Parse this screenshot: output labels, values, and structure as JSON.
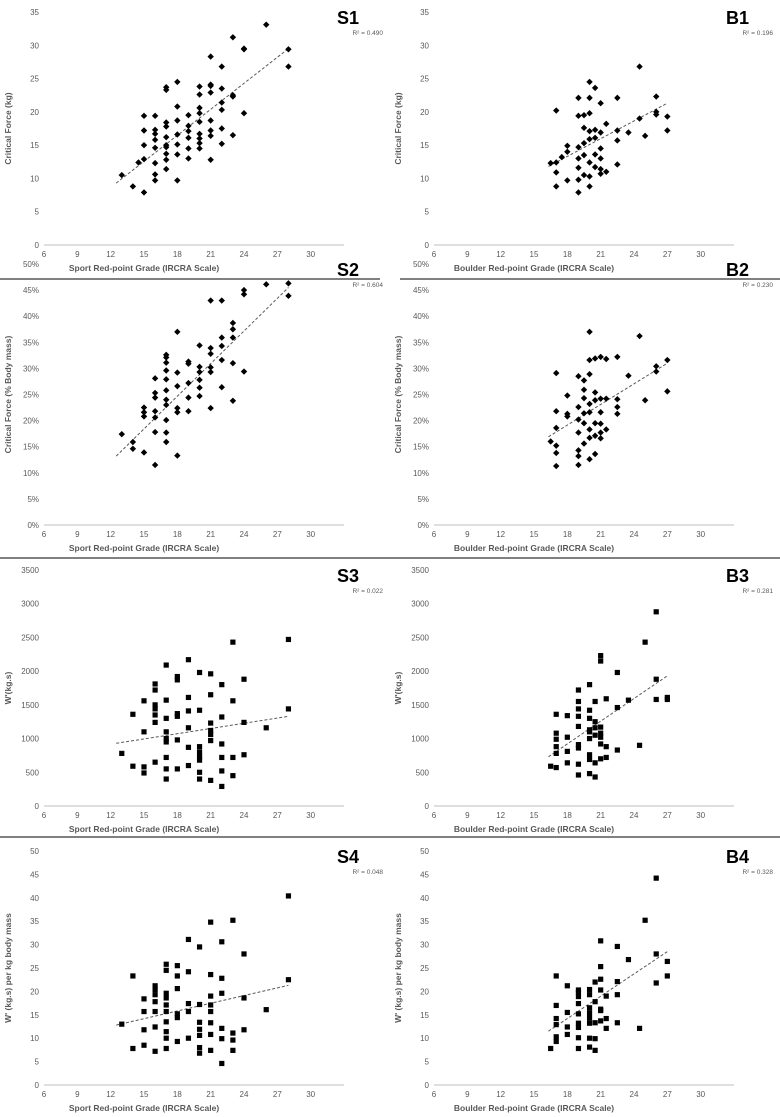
{
  "chart_data": [
    {
      "id": "S1",
      "type": "scatter",
      "panel_label": "S1",
      "r2_label": "R² = 0.490",
      "xlabel": "Sport Red-point Grade (IRCRA Scale)",
      "ylabel": "Critical Force (kg)",
      "xlim": [
        6,
        33
      ],
      "ylim": [
        0,
        35
      ],
      "xticks": [
        "6",
        "9",
        "12",
        "15",
        "18",
        "21",
        "24",
        "27",
        "30"
      ],
      "yticks": [
        "0",
        "5",
        "10",
        "15",
        "20",
        "25",
        "30",
        "35"
      ],
      "marker": "diamond",
      "trendline": {
        "x": [
          12.5,
          28
        ],
        "y": [
          9.3,
          29.5
        ]
      },
      "x": [
        13,
        14,
        14.5,
        15,
        15,
        15,
        15,
        15,
        16,
        16,
        16,
        16,
        16,
        16,
        16,
        16,
        17,
        17,
        17,
        17,
        17,
        17,
        17,
        17,
        17,
        17,
        18,
        18,
        18,
        18,
        18,
        18,
        18,
        19,
        19,
        19,
        19,
        19,
        19,
        20,
        20,
        20,
        20,
        20,
        20,
        20,
        20,
        20,
        21,
        21,
        21,
        21,
        21,
        21,
        21,
        21,
        22,
        22,
        22,
        22,
        22,
        22,
        23,
        23,
        23,
        23,
        24,
        24,
        24,
        26,
        28,
        28
      ],
      "y": [
        10.5,
        8.8,
        12.4,
        7.9,
        12.9,
        15,
        17.2,
        19.4,
        9.7,
        10.6,
        12.3,
        14.6,
        15.8,
        16.7,
        17.3,
        19.4,
        11.4,
        12.8,
        13.7,
        14.7,
        15,
        16.2,
        17.8,
        18.4,
        23.3,
        23.7,
        9.7,
        13.6,
        15.1,
        16.6,
        18.7,
        20.8,
        24.5,
        13,
        14.5,
        16.1,
        17.1,
        17.9,
        19.5,
        14.5,
        15.3,
        16,
        16.7,
        18.5,
        19.8,
        20.6,
        22.6,
        23.8,
        12.8,
        16.4,
        17.2,
        18.7,
        22.9,
        23.9,
        24.1,
        28.3,
        15.2,
        17.5,
        20.3,
        21.4,
        23.5,
        26.8,
        16.5,
        22.3,
        22.5,
        31.2,
        19.8,
        29.4,
        29.5,
        33.1,
        26.8,
        29.4
      ]
    },
    {
      "id": "B1",
      "type": "scatter",
      "panel_label": "B1",
      "r2_label": "R² = 0.196",
      "xlabel": "Boulder Red-point Grade (IRCRA Scale)",
      "ylabel": "Critical Force (kg)",
      "xlim": [
        6,
        33
      ],
      "ylim": [
        0,
        35
      ],
      "xticks": [
        "6",
        "9",
        "12",
        "15",
        "18",
        "21",
        "24",
        "27",
        "30"
      ],
      "yticks": [
        "0",
        "5",
        "10",
        "15",
        "20",
        "25",
        "30",
        "35"
      ],
      "marker": "diamond",
      "trendline": {
        "x": [
          16.3,
          27
        ],
        "y": [
          11.8,
          21.3
        ]
      },
      "x": [
        16.5,
        17,
        17,
        17,
        17,
        17.5,
        18,
        18,
        18,
        19,
        19,
        19,
        19,
        19,
        19,
        19,
        19.5,
        19.5,
        19.5,
        19.5,
        19.5,
        20,
        20,
        20,
        20,
        20,
        20,
        20,
        20,
        20.5,
        20.5,
        20.5,
        20.5,
        20.5,
        21,
        21,
        21,
        21,
        21,
        21,
        21.5,
        21.5,
        22.5,
        22.5,
        22.5,
        22.5,
        23.5,
        24.5,
        24.5,
        25,
        26,
        26,
        26,
        27,
        27
      ],
      "y": [
        12.3,
        8.8,
        10.9,
        12.4,
        20.2,
        13.2,
        9.7,
        14,
        14.9,
        7.9,
        9.8,
        11.6,
        13,
        14.7,
        19.4,
        22.1,
        10.5,
        13.5,
        15.3,
        17.6,
        19.5,
        8.8,
        10.3,
        12.4,
        15.9,
        17.1,
        19.8,
        22.1,
        24.5,
        11.7,
        13.6,
        16.1,
        17.3,
        23.6,
        10.7,
        11.4,
        13,
        14.5,
        16.9,
        21.3,
        11,
        18.2,
        12.1,
        15.7,
        17.2,
        22.1,
        16.9,
        26.8,
        19,
        16.4,
        19.6,
        20,
        22.3,
        17.2,
        19.3
      ]
    },
    {
      "id": "S2",
      "type": "scatter",
      "panel_label": "S2",
      "r2_label": "R² = 0.604",
      "xlabel": "Sport Red-point Grade (IRCRA Scale)",
      "ylabel": "Critical Force (% Body mass)",
      "xlim": [
        6,
        33
      ],
      "ylim": [
        0,
        50
      ],
      "xticks": [
        "6",
        "9",
        "12",
        "15",
        "18",
        "21",
        "24",
        "27",
        "30"
      ],
      "yticks": [
        "0%",
        "5%",
        "10%",
        "15%",
        "20%",
        "25%",
        "30%",
        "35%",
        "40%",
        "45%",
        "50%"
      ],
      "marker": "diamond",
      "trendline": {
        "x": [
          12.5,
          28
        ],
        "y": [
          13.2,
          45.5
        ]
      },
      "x": [
        13,
        14,
        14,
        15,
        15,
        15,
        15,
        16,
        16,
        16,
        16,
        16,
        16,
        16,
        17,
        17,
        17,
        17,
        17,
        17,
        17,
        17,
        17,
        17,
        17,
        18,
        18,
        18,
        18,
        18,
        18,
        19,
        19,
        19,
        19,
        19,
        20,
        20,
        20,
        20,
        20,
        20,
        21,
        21,
        21,
        21,
        21,
        21,
        22,
        22,
        22,
        22,
        22,
        23,
        23,
        23,
        23,
        23,
        24,
        24,
        24,
        26,
        28,
        28
      ],
      "y": [
        17.4,
        14.6,
        15.9,
        13.9,
        20.8,
        21.6,
        22.5,
        11.5,
        17.8,
        20.6,
        21.8,
        24.4,
        25.3,
        28.1,
        15.9,
        17.7,
        20.1,
        23,
        24,
        25.8,
        27.9,
        29.6,
        31.1,
        32.1,
        32.6,
        13.3,
        21.6,
        22.4,
        26.6,
        29.2,
        37,
        21.8,
        24.4,
        27.2,
        30.9,
        31.3,
        24.7,
        26.3,
        27.8,
        29.3,
        30.3,
        34.4,
        22.4,
        29.3,
        30.2,
        32.8,
        33.9,
        43,
        26.4,
        31.6,
        34.3,
        35.9,
        43,
        23.8,
        31,
        35.9,
        37.5,
        38.7,
        29.4,
        44.2,
        45,
        46.1,
        43.9,
        46.3
      ]
    },
    {
      "id": "B2",
      "type": "scatter",
      "panel_label": "B2",
      "r2_label": "R² = 0.230",
      "xlabel": "Boulder Red-point Grade (IRCRA Scale)",
      "ylabel": "Critical Force (% Body mass)",
      "xlim": [
        6,
        33
      ],
      "ylim": [
        0,
        50
      ],
      "xticks": [
        "6",
        "9",
        "12",
        "15",
        "18",
        "21",
        "24",
        "27",
        "30"
      ],
      "yticks": [
        "0%",
        "5%",
        "10%",
        "15%",
        "20%",
        "25%",
        "30%",
        "35%",
        "40%",
        "45%",
        "50%"
      ],
      "marker": "diamond",
      "trendline": {
        "x": [
          16.3,
          27
        ],
        "y": [
          16.9,
          31
        ]
      },
      "x": [
        16.5,
        17,
        17,
        17,
        17,
        17,
        17,
        18,
        18,
        18,
        19,
        19,
        19,
        19,
        19,
        19,
        19,
        19.5,
        19.5,
        19.5,
        19.5,
        19.5,
        19.5,
        20,
        20,
        20,
        20,
        20,
        20,
        20,
        20,
        20.5,
        20.5,
        20.5,
        20.5,
        20.5,
        20.5,
        21,
        21,
        21,
        21,
        21,
        21,
        21.5,
        21.5,
        21.5,
        22.5,
        22.5,
        22.5,
        22.5,
        23.5,
        24.5,
        25,
        26,
        26,
        27,
        27
      ],
      "y": [
        16,
        11.3,
        13.8,
        15.2,
        18.6,
        21.8,
        29.1,
        20.8,
        21.3,
        24.8,
        11.5,
        13.2,
        14.3,
        17.7,
        20.2,
        22.6,
        28.5,
        15.6,
        19.5,
        21.4,
        24.3,
        25.9,
        27.7,
        12.6,
        16.7,
        18.3,
        21.6,
        23.2,
        28.9,
        31.6,
        37,
        13.6,
        17.1,
        19.5,
        23.9,
        31.9,
        25.4,
        16.6,
        17.7,
        19.4,
        21.6,
        24.2,
        32.2,
        18.3,
        24.2,
        31.8,
        21.3,
        22.6,
        24.1,
        32.2,
        28.6,
        36.2,
        23.9,
        29.4,
        30.4,
        25.6,
        31.6
      ]
    },
    {
      "id": "S3",
      "type": "scatter",
      "panel_label": "S3",
      "r2_label": "R² = 0.022",
      "xlabel": "Sport Red-point Grade (IRCRA Scale)",
      "ylabel": "W'(kg.s)",
      "xlim": [
        6,
        33
      ],
      "ylim": [
        0,
        3500
      ],
      "xticks": [
        "6",
        "9",
        "12",
        "15",
        "18",
        "21",
        "24",
        "27",
        "30"
      ],
      "yticks": [
        "0",
        "500",
        "1000",
        "1500",
        "2000",
        "2500",
        "3000",
        "3500"
      ],
      "marker": "square",
      "trendline": {
        "x": [
          12.5,
          28
        ],
        "y": [
          930,
          1330
        ]
      },
      "x": [
        13,
        14,
        14,
        15,
        15,
        15,
        15,
        16,
        16,
        16,
        16,
        16,
        16,
        16,
        17,
        17,
        17,
        17,
        17,
        17,
        17,
        17,
        17,
        18,
        18,
        18,
        18,
        18,
        18,
        19,
        19,
        19,
        19,
        19,
        19,
        20,
        20,
        20,
        20,
        20,
        20,
        20,
        20,
        21,
        21,
        21,
        21,
        21,
        21,
        21,
        22,
        22,
        22,
        22,
        22,
        22,
        23,
        23,
        23,
        23,
        24,
        24,
        24,
        26,
        28,
        28
      ],
      "y": [
        780,
        590,
        1360,
        490,
        580,
        1100,
        1560,
        650,
        1240,
        1350,
        1440,
        1500,
        1720,
        1810,
        400,
        550,
        720,
        950,
        1000,
        1100,
        1300,
        1570,
        2090,
        550,
        980,
        1330,
        1370,
        1870,
        1920,
        600,
        870,
        1160,
        1410,
        1610,
        2170,
        400,
        500,
        680,
        730,
        800,
        880,
        1420,
        1980,
        380,
        970,
        1060,
        1120,
        1230,
        1650,
        1960,
        290,
        520,
        720,
        920,
        1320,
        1800,
        450,
        720,
        1560,
        2430,
        760,
        1240,
        1880,
        1160,
        1440,
        2470
      ]
    },
    {
      "id": "B3",
      "type": "scatter",
      "panel_label": "B3",
      "r2_label": "R² = 0.281",
      "xlabel": "Boulder Red-point Grade (IRCRA Scale)",
      "ylabel": "W'(kg.s)",
      "xlim": [
        6,
        33
      ],
      "ylim": [
        0,
        3500
      ],
      "xticks": [
        "6",
        "9",
        "12",
        "15",
        "18",
        "21",
        "24",
        "27",
        "30"
      ],
      "yticks": [
        "0",
        "500",
        "1000",
        "1500",
        "2000",
        "2500",
        "3000",
        "3500"
      ],
      "marker": "square",
      "trendline": {
        "x": [
          16.3,
          27
        ],
        "y": [
          730,
          1930
        ]
      },
      "x": [
        16.5,
        17,
        17,
        17,
        17,
        17,
        17,
        18,
        18,
        18,
        18,
        19,
        19,
        19,
        19,
        19,
        19,
        19,
        19,
        19,
        20,
        20,
        20,
        20,
        20,
        20,
        20,
        20,
        20,
        20.5,
        20.5,
        20.5,
        20.5,
        20.5,
        20.5,
        21,
        21,
        21,
        21,
        21,
        21,
        21,
        21.5,
        21.5,
        21.5,
        22.5,
        22.5,
        22.5,
        23.5,
        24.5,
        25,
        26,
        26,
        26,
        27,
        27
      ],
      "y": [
        590,
        570,
        780,
        880,
        990,
        1080,
        1360,
        640,
        810,
        1020,
        1340,
        460,
        620,
        860,
        910,
        1180,
        1330,
        1440,
        1550,
        1720,
        480,
        690,
        760,
        1000,
        1100,
        1130,
        1300,
        1420,
        1800,
        430,
        640,
        1050,
        1160,
        1250,
        1550,
        700,
        920,
        1020,
        1080,
        1170,
        2150,
        2230,
        720,
        880,
        1590,
        830,
        1460,
        1980,
        1570,
        900,
        2430,
        1580,
        1880,
        2880,
        1580,
        1610
      ]
    },
    {
      "id": "S4",
      "type": "scatter",
      "panel_label": "S4",
      "r2_label": "R² = 0.048",
      "xlabel": "Sport Red-point Grade (IRCRA Scale)",
      "ylabel": "W' (kg.s) per kg body mass",
      "xlim": [
        6,
        33
      ],
      "ylim": [
        0,
        50
      ],
      "xticks": [
        "6",
        "9",
        "12",
        "15",
        "18",
        "21",
        "24",
        "27",
        "30"
      ],
      "yticks": [
        "0",
        "5",
        "10",
        "15",
        "20",
        "25",
        "30",
        "35",
        "40",
        "45",
        "50"
      ],
      "marker": "square",
      "trendline": {
        "x": [
          12.5,
          28
        ],
        "y": [
          12.8,
          21.3
        ]
      },
      "x": [
        13,
        14,
        14,
        15,
        15,
        15,
        15,
        16,
        16,
        16,
        16,
        16,
        16,
        16,
        17,
        17,
        17,
        17,
        17,
        17,
        17,
        17,
        17,
        17,
        18,
        18,
        18,
        18,
        18,
        18,
        19,
        19,
        19,
        19,
        19,
        20,
        20,
        20,
        20,
        20,
        20,
        20,
        21,
        21,
        21,
        21,
        21,
        21,
        21,
        21,
        22,
        22,
        22,
        22,
        22,
        22,
        23,
        23,
        23,
        23,
        24,
        24,
        24,
        26,
        28,
        28
      ],
      "y": [
        13,
        7.8,
        23.3,
        8.5,
        11.8,
        15.7,
        18.4,
        7.2,
        12.4,
        15.7,
        17.8,
        19.3,
        20.4,
        21.2,
        7.8,
        10,
        11.4,
        13.5,
        15.7,
        17.1,
        18.6,
        19.6,
        24.5,
        25.8,
        9.3,
        14.4,
        15.2,
        20.6,
        23.3,
        25.5,
        10,
        15.7,
        17.4,
        24.2,
        31.1,
        6.8,
        8,
        10.6,
        11.9,
        13.4,
        17.2,
        29.5,
        7.4,
        10.8,
        13.3,
        15.7,
        17.1,
        19,
        23.6,
        34.8,
        4.6,
        9.9,
        12.1,
        19.6,
        22.8,
        30.6,
        7.4,
        9.6,
        11.1,
        35.2,
        11.8,
        18.6,
        28,
        16.1,
        22.5,
        40.4
      ]
    },
    {
      "id": "B4",
      "type": "scatter",
      "panel_label": "B4",
      "r2_label": "R² = 0.328",
      "xlabel": "Boulder Red-point Grade (IRCRA Scale)",
      "ylabel": "W' (kg.s) per kg body mass",
      "xlim": [
        6,
        33
      ],
      "ylim": [
        0,
        50
      ],
      "xticks": [
        "6",
        "9",
        "12",
        "15",
        "18",
        "21",
        "24",
        "27",
        "30"
      ],
      "yticks": [
        "0",
        "5",
        "10",
        "15",
        "20",
        "25",
        "30",
        "35",
        "40",
        "45",
        "50"
      ],
      "marker": "square",
      "trendline": {
        "x": [
          16.3,
          27
        ],
        "y": [
          11.5,
          28.5
        ]
      },
      "x": [
        16.5,
        17,
        17,
        17,
        17,
        17,
        17,
        18,
        18,
        18,
        18,
        19,
        19,
        19,
        19,
        19,
        19,
        19,
        19,
        19,
        20,
        20,
        20,
        20,
        20,
        20,
        20,
        20,
        20.5,
        20.5,
        20.5,
        20.5,
        20.5,
        21,
        21,
        21,
        21,
        21,
        21,
        21,
        21.5,
        21.5,
        21.5,
        22.5,
        22.5,
        22.5,
        22.5,
        23.5,
        24.5,
        25,
        26,
        26,
        26,
        27,
        27
      ],
      "y": [
        7.8,
        9.3,
        10.3,
        12.9,
        14.2,
        17,
        23.3,
        10.8,
        12.4,
        15.5,
        21.2,
        7.8,
        10.1,
        12.3,
        13.2,
        15.2,
        17.4,
        18.9,
        19.8,
        20.3,
        8.1,
        10,
        13.2,
        14.3,
        15.4,
        16.5,
        19.3,
        20.4,
        7.4,
        9.9,
        13.3,
        17.8,
        22,
        13.7,
        15.9,
        16.2,
        20.3,
        22.6,
        25.3,
        30.8,
        12.1,
        14.2,
        19,
        13.3,
        19.3,
        22.1,
        29.6,
        26.8,
        12.1,
        35.2,
        21.8,
        28,
        44.2,
        23.3,
        26.4
      ]
    }
  ]
}
